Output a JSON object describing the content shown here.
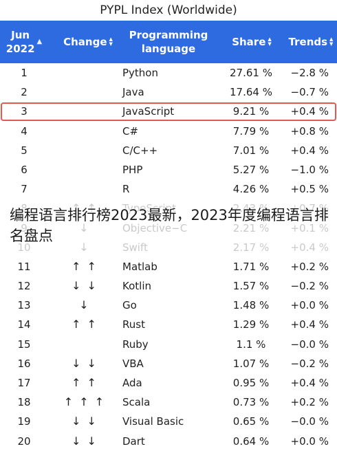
{
  "title": "PYPL Index (Worldwide)",
  "header": {
    "rank_line1": "Jun",
    "rank_line2": "2022",
    "change": "Change",
    "lang_line1": "Programming",
    "lang_line2": "language",
    "share": "Share",
    "trends": "Trends"
  },
  "colors": {
    "header_bg": "#2e6be0",
    "highlight_border": "#e35a4a"
  },
  "rows": [
    {
      "rank": "1",
      "change": "",
      "language": "Python",
      "share": "27.61 %",
      "trend": "−2.8 %"
    },
    {
      "rank": "2",
      "change": "",
      "language": "Java",
      "share": "17.64 %",
      "trend": "−0.7 %"
    },
    {
      "rank": "3",
      "change": "",
      "language": "JavaScript",
      "share": "9.21 %",
      "trend": "+0.4 %"
    },
    {
      "rank": "4",
      "change": "",
      "language": "C#",
      "share": "7.79 %",
      "trend": "+0.8 %"
    },
    {
      "rank": "5",
      "change": "",
      "language": "C/C++",
      "share": "7.01 %",
      "trend": "+0.4 %"
    },
    {
      "rank": "6",
      "change": "",
      "language": "PHP",
      "share": "5.27 %",
      "trend": "−1.0 %"
    },
    {
      "rank": "7",
      "change": "",
      "language": "R",
      "share": "4.26 %",
      "trend": "+0.5 %"
    },
    {
      "rank": "8",
      "change": "↑ ↑",
      "language": "TypeScript",
      "share": "2.43 %",
      "trend": "+0.7 %"
    },
    {
      "rank": "9",
      "change": "↓",
      "language": "Objective−C",
      "share": "2.21 %",
      "trend": "+0.1 %"
    },
    {
      "rank": "10",
      "change": "↓",
      "language": "Swift",
      "share": "2.17 %",
      "trend": "+0.4 %"
    },
    {
      "rank": "11",
      "change": "↑ ↑",
      "language": "Matlab",
      "share": "1.71 %",
      "trend": "+0.2 %"
    },
    {
      "rank": "12",
      "change": "↓ ↓",
      "language": "Kotlin",
      "share": "1.57 %",
      "trend": "−0.2 %"
    },
    {
      "rank": "13",
      "change": "↓",
      "language": "Go",
      "share": "1.48 %",
      "trend": "+0.0 %"
    },
    {
      "rank": "14",
      "change": "↑ ↑",
      "language": "Rust",
      "share": "1.29 %",
      "trend": "+0.4 %"
    },
    {
      "rank": "15",
      "change": "",
      "language": "Ruby",
      "share": "1.1 %",
      "trend": "−0.0 %"
    },
    {
      "rank": "16",
      "change": "↓ ↓",
      "language": "VBA",
      "share": "1.07 %",
      "trend": "−0.2 %"
    },
    {
      "rank": "17",
      "change": "↑ ↑",
      "language": "Ada",
      "share": "0.95 %",
      "trend": "+0.4 %"
    },
    {
      "rank": "18",
      "change": "↑ ↑ ↑",
      "language": "Scala",
      "share": "0.73 %",
      "trend": "+0.2 %"
    },
    {
      "rank": "19",
      "change": "↓ ↓",
      "language": "Visual Basic",
      "share": "0.65 %",
      "trend": "−0.0 %"
    },
    {
      "rank": "20",
      "change": "↓ ↓",
      "language": "Dart",
      "share": "0.64 %",
      "trend": "+0.0 %"
    }
  ],
  "overlay_text": "编程语言排行榜2023最新，2023年度编程语言排名盘点"
}
